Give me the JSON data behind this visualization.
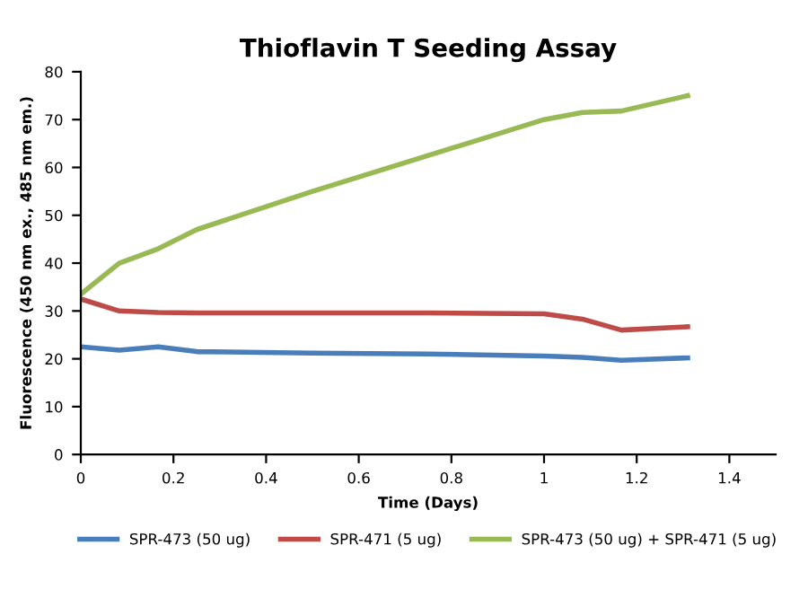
{
  "chart_data": {
    "type": "line",
    "title": "Thioflavin T Seeding Assay",
    "xlabel": "Time (Days)",
    "ylabel": "Fluorescence (450 nm ex., 485 nm em.)",
    "x": [
      0,
      0.083,
      0.167,
      0.25,
      0.5,
      0.75,
      1.0,
      1.083,
      1.167,
      1.31
    ],
    "series": [
      {
        "name": "SPR-473 (50 ug)",
        "color": "#4a7ebb",
        "values": [
          22.5,
          21.8,
          22.5,
          21.5,
          21.2,
          21,
          20.6,
          20.3,
          19.7,
          20.2
        ]
      },
      {
        "name": "SPR-471 (5 ug)",
        "color": "#be4b48",
        "values": [
          32.5,
          30,
          29.7,
          29.6,
          29.6,
          29.6,
          29.4,
          28.3,
          26,
          26.7
        ]
      },
      {
        "name": "SPR-473 (50 ug) + SPR-471 (5 ug)",
        "color": "#98b954",
        "values": [
          33.5,
          40,
          43,
          47,
          55,
          62.5,
          70,
          71.5,
          71.8,
          75
        ]
      }
    ],
    "xlim": [
      0,
      1.5
    ],
    "xticks": [
      0,
      0.2,
      0.4,
      0.6,
      0.8,
      1,
      1.2,
      1.4
    ],
    "ylim": [
      0,
      80
    ],
    "yticks": [
      0,
      10,
      20,
      30,
      40,
      50,
      60,
      70,
      80
    ],
    "grid": false,
    "legend": "bottom",
    "marker": "none",
    "line_style": "solid"
  }
}
